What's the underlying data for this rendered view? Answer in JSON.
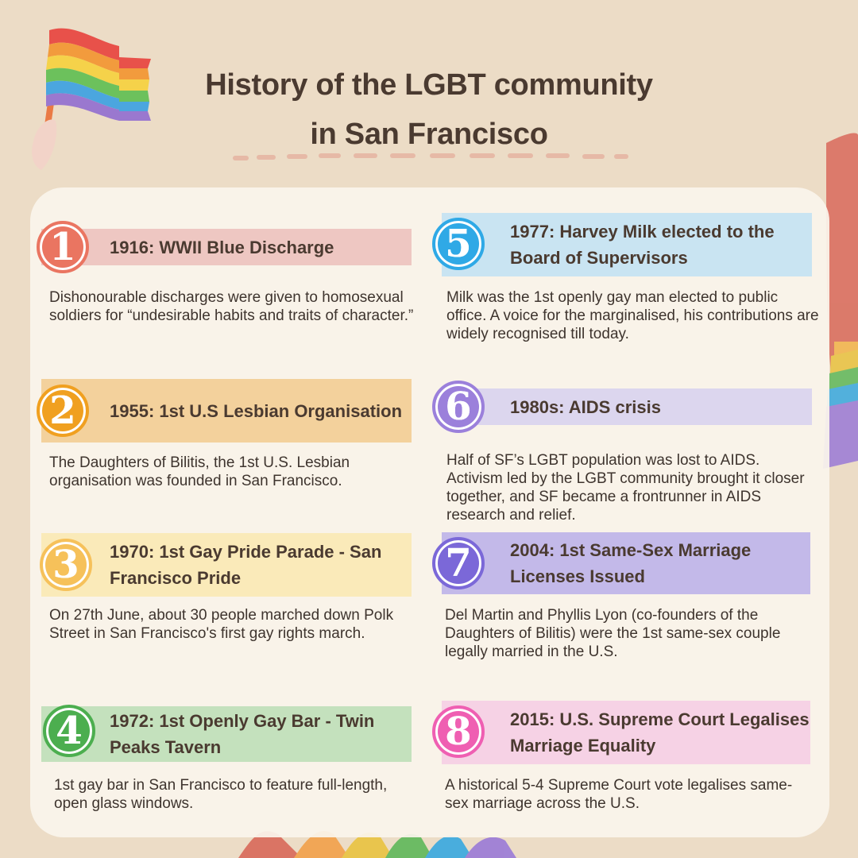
{
  "title": {
    "line1": "History of the LGBT community",
    "line2": "in San Francisco"
  },
  "colors": {
    "background": "#ecdcc6",
    "card": "#faf4ec",
    "text": "#4a3a30"
  },
  "events": [
    {
      "number": "1",
      "heading": "1916: WWII Blue Discharge",
      "description": "Dishonourable discharges were given to homosexual soldiers for “undesirable habits and traits of character.”",
      "band_color": "#eec7c2",
      "circle_color": "#ea7561"
    },
    {
      "number": "2",
      "heading": "1955: 1st U.S Lesbian Organisation",
      "description": "The Daughters of Bilitis, the 1st U.S. Lesbian organisation was founded in San Francisco.",
      "band_color": "#f3d19c",
      "circle_color": "#f0a020"
    },
    {
      "number": "3",
      "heading": "1970: 1st Gay Pride Parade - San Francisco Pride",
      "description": "On 27th June, about 30 people marched down Polk Street in San Francisco's first gay rights march.",
      "band_color": "#faeab9",
      "circle_color": "#f6c15a"
    },
    {
      "number": "4",
      "heading": "1972: 1st Openly Gay Bar - Twin Peaks Tavern",
      "description": "1st gay bar in San Francisco to feature full-length, open glass windows.",
      "band_color": "#c4e1bd",
      "circle_color": "#4cae4f"
    },
    {
      "number": "5",
      "heading": "1977: Harvey Milk elected to the Board of Supervisors",
      "description": "Milk was the 1st openly gay man elected to public office. A voice for the marginalised, his contributions are widely recognised till today.",
      "band_color": "#c9e4f2",
      "circle_color": "#2fa9e6"
    },
    {
      "number": "6",
      "heading": "1980s: AIDS crisis",
      "description": "Half of SF’s LGBT population was lost to AIDS. Activism led by the LGBT community brought it closer together, and SF became a frontrunner in AIDS research and relief.",
      "band_color": "#dcd6ee",
      "circle_color": "#9b80db"
    },
    {
      "number": "7",
      "heading": "2004: 1st Same-Sex Marriage Licenses Issued",
      "description": "Del Martin and Phyllis Lyon (co-founders of the Daughters of Bilitis) were the 1st same-sex couple legally married in the U.S.",
      "band_color": "#c3b9e9",
      "circle_color": "#7b68d8"
    },
    {
      "number": "8",
      "heading": "2015: U.S. Supreme Court Legalises Marriage Equality",
      "description": "A historical 5-4 Supreme Court vote legalises same-sex marriage across the U.S.",
      "band_color": "#f6d2e5",
      "circle_color": "#ef5fb2"
    }
  ]
}
